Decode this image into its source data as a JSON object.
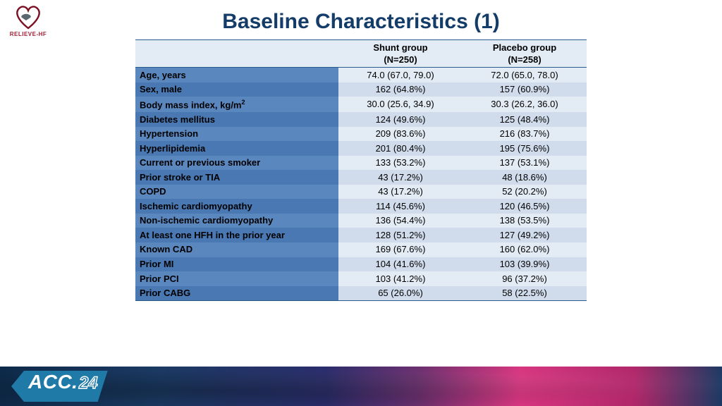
{
  "logo": {
    "text": "RELIEVE-HF",
    "heart_stroke": "#7a1022",
    "hand_fill": "#5a6770"
  },
  "title": "Baseline Characteristics (1)",
  "title_color": "#143c69",
  "table": {
    "border_color": "#2b5a8c",
    "header_bg": "#e3ecf5",
    "label_odd_bg": "#5b87bf",
    "label_even_bg": "#4a78b3",
    "val_odd_bg": "#e3ecf5",
    "val_even_bg": "#d0dcec",
    "col_widths": [
      "45%",
      "27.5%",
      "27.5%"
    ],
    "columns": [
      {
        "top": "",
        "sub": ""
      },
      {
        "top": "Shunt group",
        "sub": "(N=250)"
      },
      {
        "top": "Placebo group",
        "sub": "(N=258)"
      }
    ],
    "rows": [
      {
        "label": "Age, years",
        "shunt": "74.0 (67.0, 79.0)",
        "placebo": "72.0 (65.0, 78.0)"
      },
      {
        "label": "Sex, male",
        "shunt": "162 (64.8%)",
        "placebo": "157 (60.9%)"
      },
      {
        "label": "Body mass index, kg/m",
        "label_sup": "2",
        "shunt": "30.0 (25.6, 34.9)",
        "placebo": "30.3 (26.2, 36.0)"
      },
      {
        "label": "Diabetes mellitus",
        "shunt": "124 (49.6%)",
        "placebo": "125 (48.4%)"
      },
      {
        "label": "Hypertension",
        "shunt": "209 (83.6%)",
        "placebo": "216 (83.7%)"
      },
      {
        "label": "Hyperlipidemia",
        "shunt": "201 (80.4%)",
        "placebo": "195 (75.6%)"
      },
      {
        "label": "Current or previous smoker",
        "shunt": "133 (53.2%)",
        "placebo": "137 (53.1%)"
      },
      {
        "label": "Prior stroke or TIA",
        "shunt": "43 (17.2%)",
        "placebo": "48 (18.6%)"
      },
      {
        "label": "COPD",
        "shunt": "43 (17.2%)",
        "placebo": "52 (20.2%)"
      },
      {
        "label": "Ischemic cardiomyopathy",
        "shunt": "114 (45.6%)",
        "placebo": "120 (46.5%)"
      },
      {
        "label": "Non-ischemic cardiomyopathy",
        "shunt": "136 (54.4%)",
        "placebo": "138 (53.5%)"
      },
      {
        "label": "At least one HFH in the prior year",
        "shunt": "128 (51.2%)",
        "placebo": "127 (49.2%)"
      },
      {
        "label": "Known CAD",
        "shunt": "169 (67.6%)",
        "placebo": "160 (62.0%)"
      },
      {
        "label": "Prior MI",
        "shunt": "104 (41.6%)",
        "placebo": "103 (39.9%)"
      },
      {
        "label": "Prior PCI",
        "shunt": "103 (41.2%)",
        "placebo": "96 (37.2%)"
      },
      {
        "label": "Prior CABG",
        "shunt": "65 (26.0%)",
        "placebo": "58 (22.5%)"
      }
    ]
  },
  "footer": {
    "acc": "ACC",
    "dot": ".",
    "year": "24",
    "badge_bg": "#1f7aa8"
  }
}
